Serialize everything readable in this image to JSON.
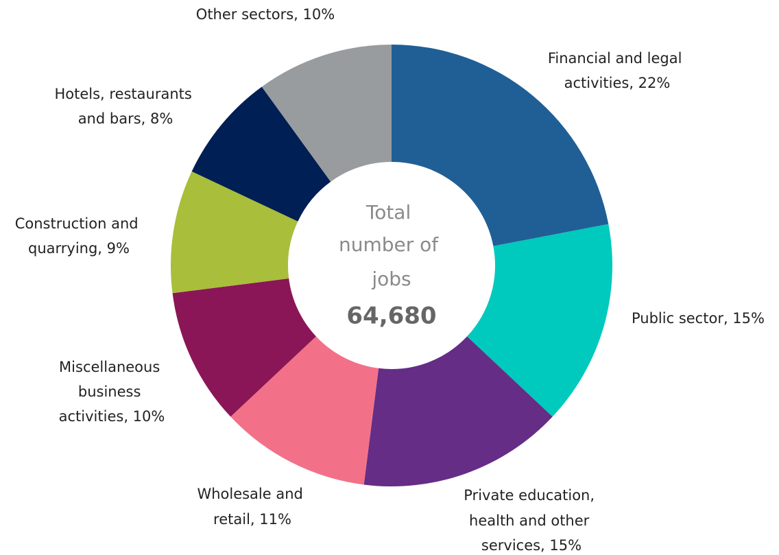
{
  "chart_data": {
    "type": "donut",
    "categories": [
      "Financial and legal activities, 22%",
      "Public sector, 15%",
      "Private education, health and other services, 15%",
      "Wholesale and retail, 11%",
      "Miscellaneous business activities, 10%",
      "Construction and quarrying, 9%",
      "Hotels, restaurants and bars, 8%",
      "Other sectors, 10%"
    ],
    "values": [
      22,
      15,
      15,
      11,
      10,
      9,
      8,
      10
    ],
    "colors": [
      "#1f5f96",
      "#00c9bd",
      "#652d86",
      "#f27188",
      "#8a1657",
      "#a9be3a",
      "#001f54",
      "#999c9e"
    ],
    "center_text": "Total number of jobs",
    "total": {
      "value": 64680,
      "label": "64,680"
    }
  }
}
